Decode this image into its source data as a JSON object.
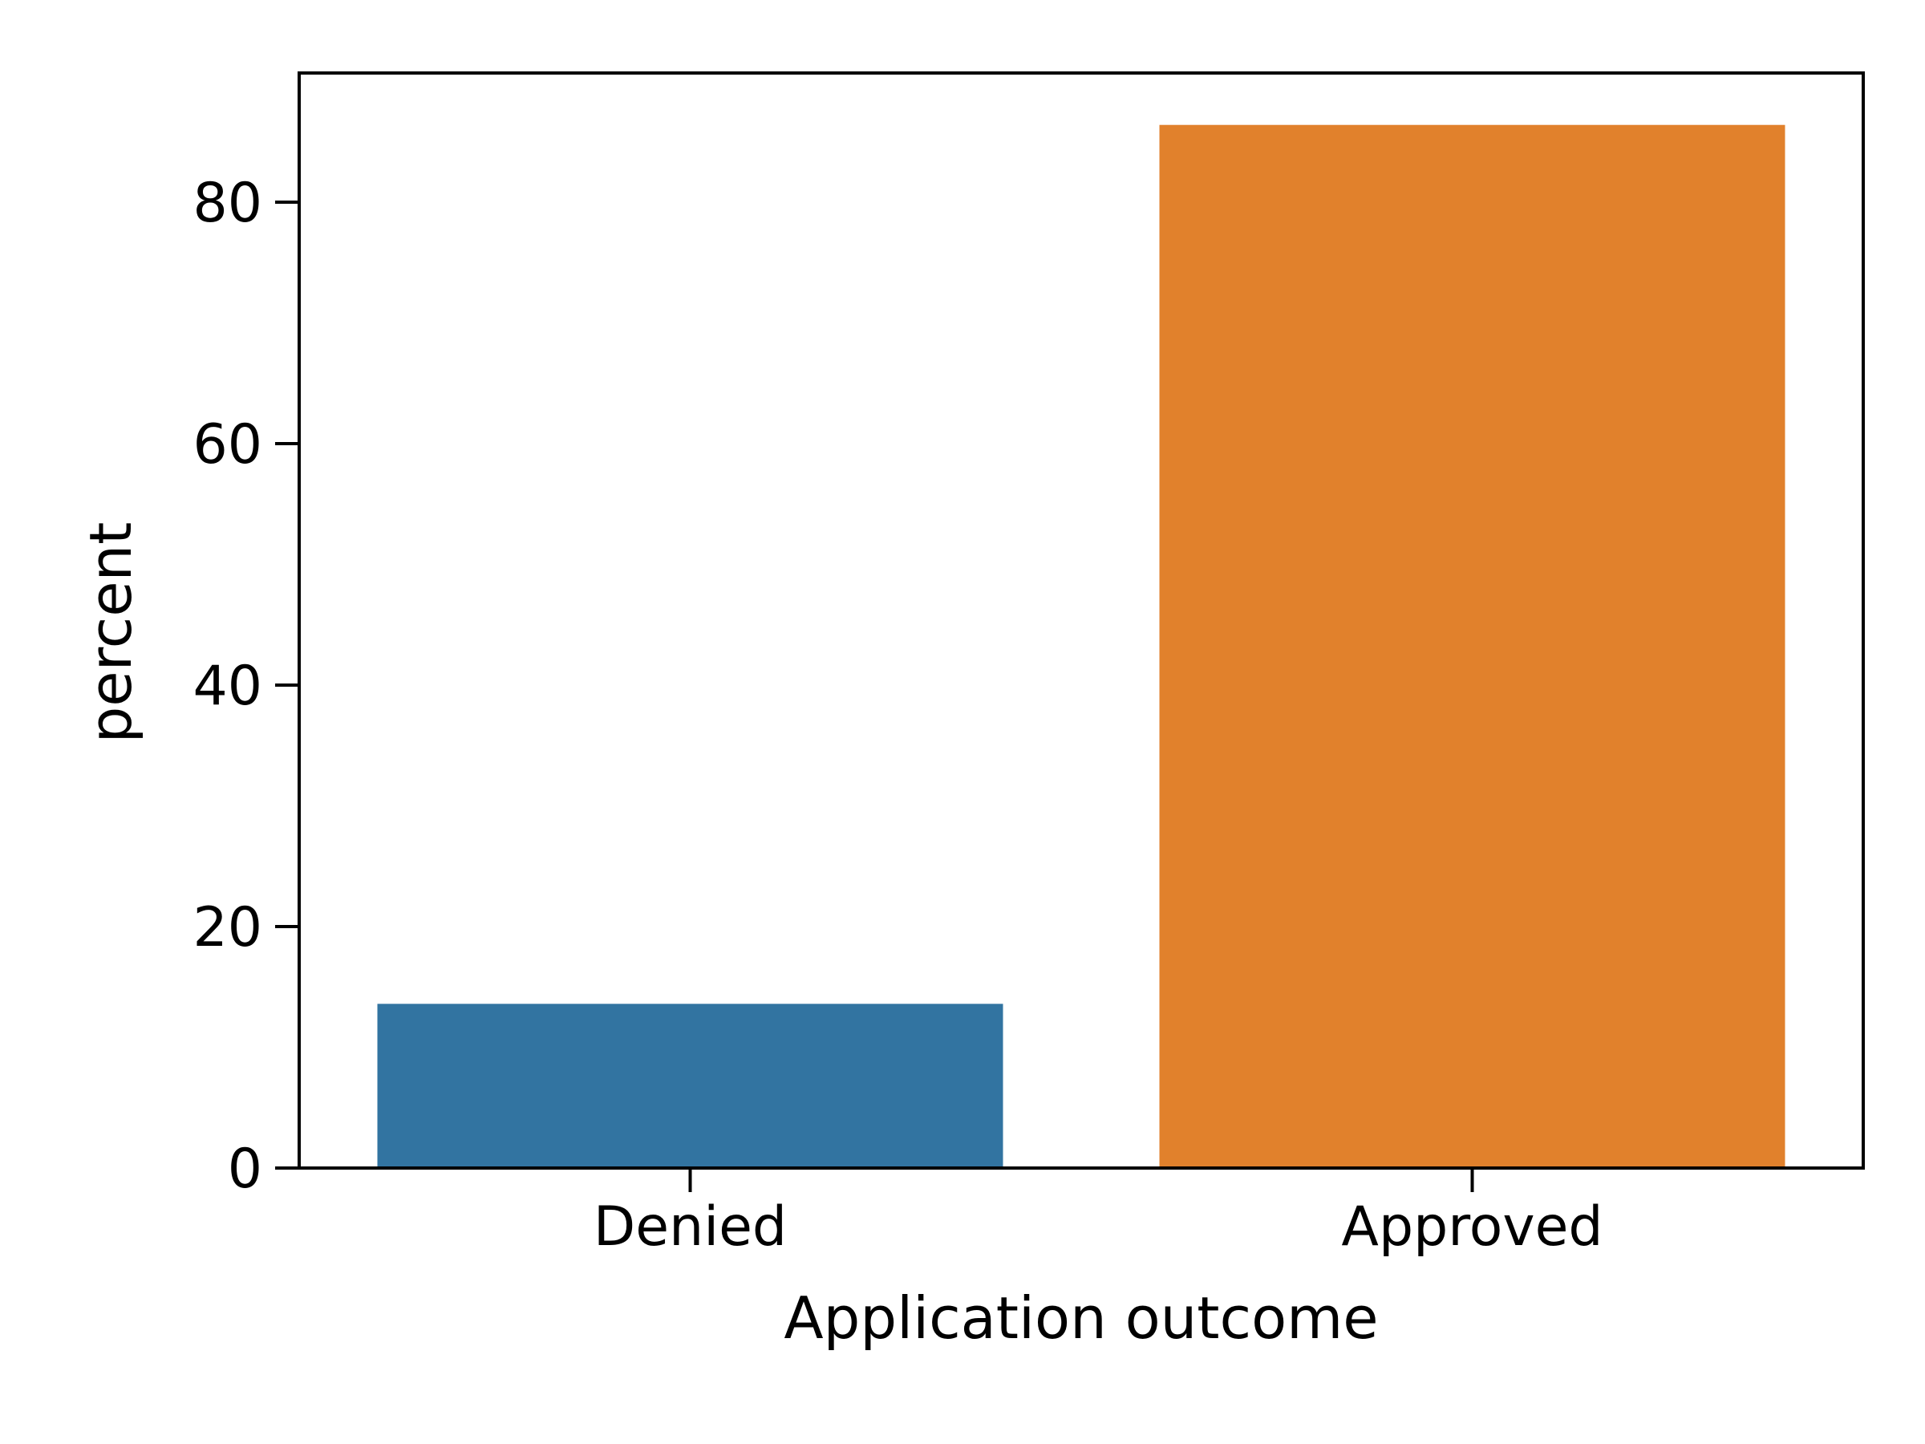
{
  "chart_data": {
    "type": "bar",
    "categories": [
      "Denied",
      "Approved"
    ],
    "values": [
      13.6,
      86.4
    ],
    "colors": [
      "#3274a1",
      "#e1812c"
    ],
    "title": "",
    "xlabel": "Application outcome",
    "ylabel": "percent",
    "ylim": [
      0,
      90.7
    ],
    "yticks": [
      0,
      20,
      40,
      60,
      80
    ],
    "grid": false,
    "legend": "none"
  }
}
